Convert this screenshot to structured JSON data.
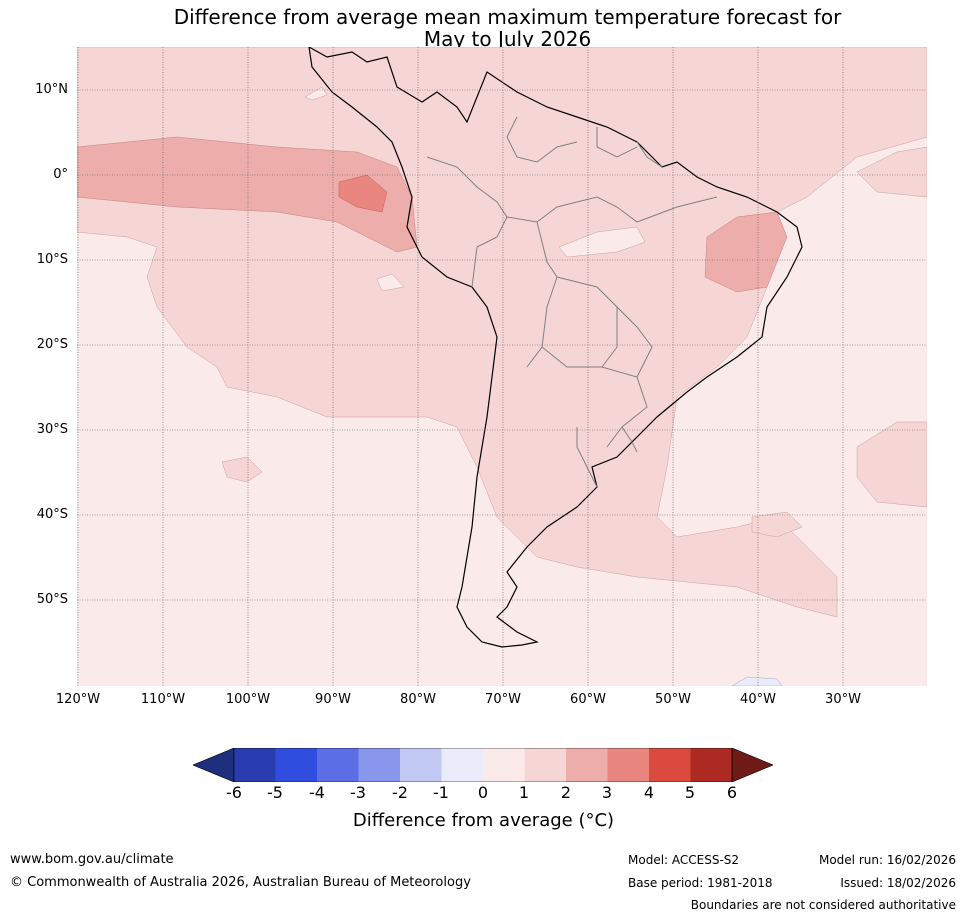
{
  "title": {
    "line1": "Difference from average mean maximum temperature forecast for",
    "line2": "May to July 2026"
  },
  "map": {
    "latitude_labels": [
      "10°N",
      "0°",
      "10°S",
      "20°S",
      "30°S",
      "40°S",
      "50°S"
    ],
    "longitude_labels": [
      "120°W",
      "110°W",
      "100°W",
      "90°W",
      "80°W",
      "70°W",
      "60°W",
      "50°W",
      "40°W",
      "30°W"
    ]
  },
  "colorbar": {
    "tick_labels": [
      "-6",
      "-5",
      "-4",
      "-3",
      "-2",
      "-1",
      "0",
      "1",
      "2",
      "3",
      "4",
      "5",
      "6"
    ],
    "colors": [
      "#1f2f7e",
      "#2a3db0",
      "#2f4ee0",
      "#5b6ee6",
      "#8896ec",
      "#c2c8f4",
      "#eaecfb",
      "#fbeaea",
      "#f6d6d5",
      "#edaeab",
      "#e8867f",
      "#da4a3e",
      "#ac2a22",
      "#6f1a17"
    ],
    "label": "Difference from average (°C)"
  },
  "footer": {
    "website": "www.bom.gov.au/climate",
    "copyright": "© Commonwealth of Australia 2026, Australian Bureau of Meteorology",
    "model": "Model: ACCESS-S2",
    "base_period": "Base period: 1981-2018",
    "model_run": "Model run: 16/02/2026",
    "issued": "Issued: 18/02/2026",
    "disclaimer": "Boundaries are not considered authoritative"
  }
}
